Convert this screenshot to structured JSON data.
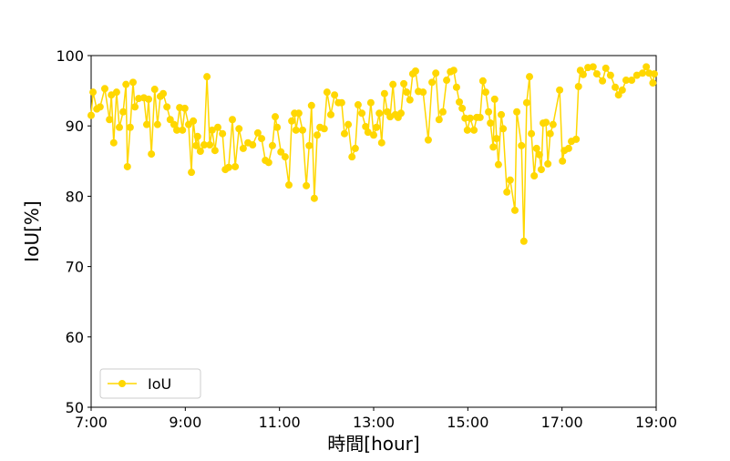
{
  "chart_data": {
    "type": "line",
    "xlabel": "時間[hour]",
    "ylabel": "IoU[%]",
    "xlim": [
      7,
      19
    ],
    "xticks": [
      {
        "value": 7,
        "label": "7:00"
      },
      {
        "value": 9,
        "label": "9:00"
      },
      {
        "value": 11,
        "label": "11:00"
      },
      {
        "value": 13,
        "label": "13:00"
      },
      {
        "value": 15,
        "label": "15:00"
      },
      {
        "value": 17,
        "label": "17:00"
      },
      {
        "value": 19,
        "label": "19:00"
      }
    ],
    "ylim": [
      50,
      100
    ],
    "yticks": [
      50,
      60,
      70,
      80,
      90,
      100
    ],
    "grid": false,
    "legend": "lower left",
    "x": [
      7.0,
      7.04,
      7.12,
      7.19,
      7.29,
      7.39,
      7.43,
      7.48,
      7.54,
      7.6,
      7.68,
      7.74,
      7.77,
      7.83,
      7.89,
      7.93,
      8.01,
      8.12,
      8.18,
      8.22,
      8.28,
      8.35,
      8.41,
      8.47,
      8.53,
      8.61,
      8.68,
      8.76,
      8.82,
      8.88,
      8.94,
      8.99,
      9.07,
      9.13,
      9.17,
      9.23,
      9.26,
      9.32,
      9.4,
      9.46,
      9.52,
      9.57,
      9.63,
      9.69,
      9.79,
      9.85,
      9.92,
      10.0,
      10.06,
      10.14,
      10.23,
      10.33,
      10.43,
      10.54,
      10.62,
      10.7,
      10.77,
      10.85,
      10.91,
      10.95,
      11.03,
      11.12,
      11.2,
      11.26,
      11.32,
      11.35,
      11.41,
      11.49,
      11.57,
      11.63,
      11.68,
      11.74,
      11.8,
      11.86,
      11.95,
      12.01,
      12.09,
      12.17,
      12.25,
      12.32,
      12.38,
      12.46,
      12.54,
      12.61,
      12.67,
      12.75,
      12.83,
      12.88,
      12.94,
      13.0,
      13.06,
      13.12,
      13.17,
      13.23,
      13.29,
      13.35,
      13.41,
      13.46,
      13.52,
      13.58,
      13.64,
      13.7,
      13.77,
      13.83,
      13.89,
      13.95,
      14.05,
      14.16,
      14.24,
      14.32,
      14.39,
      14.47,
      14.55,
      14.63,
      14.7,
      14.76,
      14.82,
      14.88,
      14.94,
      14.99,
      15.05,
      15.13,
      15.19,
      15.26,
      15.32,
      15.38,
      15.44,
      15.48,
      15.54,
      15.57,
      15.61,
      15.65,
      15.71,
      15.75,
      15.83,
      15.9,
      16.0,
      16.04,
      16.14,
      16.19,
      16.25,
      16.31,
      16.35,
      16.41,
      16.46,
      16.52,
      16.56,
      16.6,
      16.66,
      16.7,
      16.75,
      16.81,
      16.95,
      17.01,
      17.05,
      17.14,
      17.2,
      17.3,
      17.35,
      17.39,
      17.45,
      17.55,
      17.66,
      17.74,
      17.86,
      17.93,
      18.03,
      18.13,
      18.2,
      18.28,
      18.36,
      18.48,
      18.59,
      18.71,
      18.79,
      18.85,
      18.93,
      18.96
    ],
    "series": [
      {
        "name": "IoU",
        "color": "#ffd700",
        "values": [
          91.5,
          94.8,
          92.4,
          92.7,
          95.3,
          90.9,
          94.4,
          87.6,
          94.8,
          89.8,
          92.0,
          95.9,
          84.2,
          89.8,
          96.2,
          92.7,
          93.9,
          94.0,
          90.2,
          93.8,
          86.0,
          95.2,
          90.2,
          94.2,
          94.6,
          92.7,
          90.9,
          90.2,
          89.4,
          92.6,
          89.4,
          92.5,
          90.2,
          83.4,
          90.7,
          87.2,
          88.5,
          86.4,
          87.3,
          97.0,
          87.3,
          89.4,
          86.5,
          89.8,
          88.9,
          83.8,
          84.1,
          90.9,
          84.2,
          89.6,
          86.8,
          87.6,
          87.3,
          89.0,
          88.2,
          85.1,
          84.8,
          87.2,
          91.3,
          89.8,
          86.3,
          85.6,
          81.6,
          90.7,
          91.8,
          89.4,
          91.8,
          89.4,
          81.5,
          87.2,
          92.9,
          79.7,
          88.7,
          89.8,
          89.6,
          94.8,
          91.6,
          94.4,
          93.3,
          93.3,
          88.9,
          90.2,
          85.6,
          86.8,
          93.0,
          91.8,
          89.9,
          89.1,
          93.3,
          88.7,
          89.8,
          91.8,
          87.6,
          94.6,
          92.0,
          91.3,
          95.9,
          91.6,
          91.2,
          91.8,
          96.0,
          94.8,
          93.7,
          97.4,
          97.8,
          94.9,
          94.8,
          88.0,
          96.2,
          97.5,
          90.9,
          92.0,
          96.5,
          97.7,
          97.9,
          95.5,
          93.4,
          92.5,
          91.1,
          89.4,
          91.1,
          89.4,
          91.2,
          91.2,
          96.4,
          94.8,
          92.0,
          90.4,
          87.0,
          93.8,
          88.2,
          84.5,
          91.6,
          89.6,
          80.6,
          82.3,
          78.0,
          92.0,
          87.2,
          73.6,
          93.3,
          97.0,
          88.9,
          82.9,
          86.8,
          85.9,
          83.8,
          90.4,
          90.5,
          84.6,
          88.9,
          90.2,
          95.1,
          85.0,
          86.5,
          86.8,
          87.8,
          88.1,
          95.6,
          97.9,
          97.3,
          98.3,
          98.4,
          97.4,
          96.4,
          98.2,
          97.2,
          95.5,
          94.4,
          95.1,
          96.5,
          96.5,
          97.2,
          97.5,
          98.4,
          97.5,
          96.1,
          97.4
        ]
      }
    ]
  }
}
